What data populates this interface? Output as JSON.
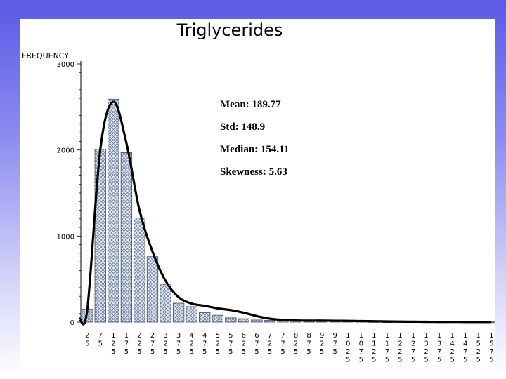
{
  "chart_data": {
    "type": "bar",
    "title": "Triglycerides",
    "ylabel": "FREQUENCY",
    "xlabel": "",
    "ylim": [
      0,
      3000
    ],
    "yticks": [
      0,
      1000,
      2000,
      3000
    ],
    "grid": false,
    "categories": [
      "25",
      "75",
      "125",
      "175",
      "225",
      "275",
      "325",
      "375",
      "425",
      "475",
      "525",
      "575",
      "625",
      "675",
      "725",
      "775",
      "825",
      "875",
      "925",
      "975",
      "1025",
      "1075",
      "1125",
      "1175",
      "1225",
      "1275",
      "1325",
      "1375",
      "1425",
      "1475",
      "1525",
      "1575"
    ],
    "category_labels": [
      "2\n5",
      "7\n5",
      "1\n2\n5",
      "1\n7\n5",
      "2\n2\n5",
      "2\n7\n5",
      "3\n2\n5",
      "3\n7\n5",
      "4\n2\n5",
      "4\n7\n5",
      "5\n2\n5",
      "5\n7\n5",
      "6\n2\n5",
      "6\n7\n5",
      "7\n2\n5",
      "7\n7\n5",
      "8\n2\n5",
      "8\n7\n5",
      "9\n2\n5",
      "9\n7\n5",
      "1\n0\n2\n5",
      "1\n0\n7\n5",
      "1\n1\n2\n5",
      "1\n1\n7\n5",
      "1\n2\n2\n5",
      "1\n2\n7\n5",
      "1\n3\n2\n5",
      "1\n3\n7\n5",
      "1\n4\n2\n5",
      "1\n4\n7\n5",
      "1\n5\n2\n5",
      "1\n5\n7\n5"
    ],
    "values": [
      150,
      2010,
      2590,
      1970,
      1210,
      760,
      440,
      220,
      180,
      110,
      80,
      50,
      40,
      25,
      20,
      15,
      10,
      8,
      8,
      10,
      15,
      10,
      5,
      3,
      5,
      3,
      2,
      2,
      4,
      2,
      2,
      2
    ],
    "density_curve": [
      150,
      2010,
      2560,
      2080,
      1300,
      820,
      480,
      290,
      215,
      190,
      160,
      140,
      110,
      70,
      40,
      25,
      20,
      18,
      18,
      16,
      14,
      12,
      10,
      8,
      6,
      5,
      4,
      3,
      3,
      2,
      2,
      2
    ],
    "annotations": [
      "Mean:  189.77",
      "Std:  148.9",
      "Median: 154.11",
      "Skewness: 5.63"
    ]
  },
  "colors": {
    "bar_fill": "#e8eef7",
    "bar_hatch": "#6b7d9c",
    "bar_stroke": "#3b4a66",
    "curve": "#000000",
    "background_top": "#5a5ae6"
  }
}
